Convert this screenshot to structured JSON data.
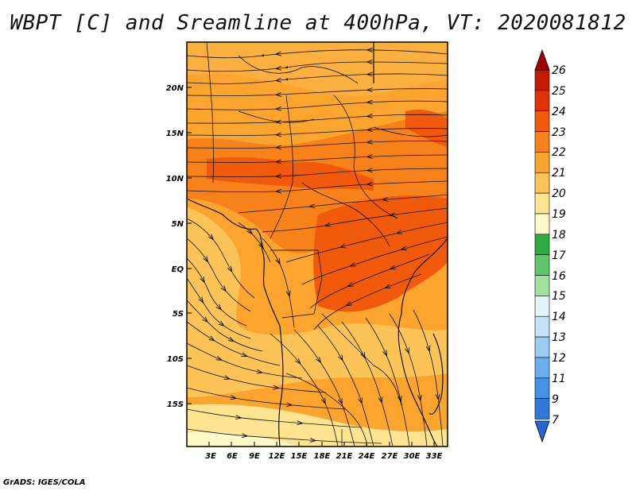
{
  "title": "WBPT [C] and Sreamline at 400hPa, VT: 2020081812",
  "credit": "GrADS: IGES/COLA",
  "lat_labels": [
    "20N",
    "15N",
    "10N",
    "5N",
    "EQ",
    "5S",
    "10S",
    "15S"
  ],
  "lon_labels": [
    "3E",
    "6E",
    "9E",
    "12E",
    "15E",
    "18E",
    "21E",
    "24E",
    "27E",
    "30E",
    "33E"
  ],
  "map_extent": {
    "lon": [
      0.5,
      35
    ],
    "lat": [
      -20,
      24.5
    ]
  },
  "colorbar": {
    "labels": [
      "26",
      "25",
      "24",
      "23",
      "22",
      "21",
      "20",
      "19",
      "18",
      "17",
      "16",
      "15",
      "14",
      "13",
      "12",
      "11",
      "9",
      "7"
    ],
    "colors": [
      "#a00000",
      "#c41b00",
      "#e03200",
      "#f05a0a",
      "#f8821a",
      "#fba42e",
      "#fcc456",
      "#fde490",
      "#fef9c8",
      "#2ead3e",
      "#5fc66a",
      "#a0e19f",
      "#e2f4f7",
      "#c6e2f8",
      "#9ccaf3",
      "#6baeec",
      "#4591e3",
      "#2f7ad9",
      "#2766cf"
    ]
  },
  "colors": {
    "warm_core": "#f05a0a",
    "warm_band": "#f8821a",
    "background": "#fba42e",
    "cool_band": "#fcc456",
    "coolest": "#fde490",
    "streamline": "#111111",
    "coastline": "#000000"
  }
}
